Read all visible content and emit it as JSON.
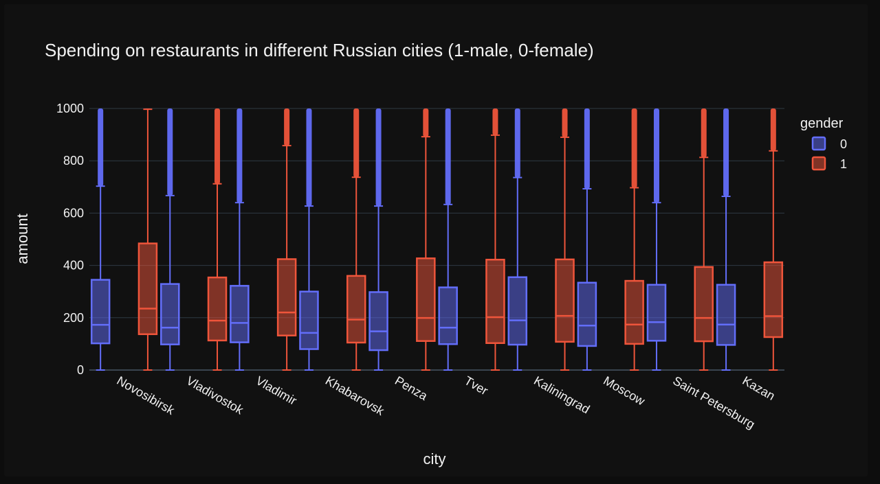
{
  "chart_data": {
    "type": "box",
    "title": "Spending on restaurants in different Russian cities (1-male, 0-female)",
    "xlabel": "city",
    "ylabel": "amount",
    "ylim": [
      0,
      1000
    ],
    "yticks": [
      0,
      200,
      400,
      600,
      800,
      1000
    ],
    "legend_title": "gender",
    "legend_position": "top-right",
    "grid": true,
    "categories": [
      "Novosibirsk",
      "Vladivostok",
      "Vladimir",
      "Khabarovsk",
      "Penza",
      "Tver",
      "Kaliningrad",
      "Moscow",
      "Saint Petersburg",
      "Kazan"
    ],
    "series": [
      {
        "name": "0",
        "color": "#636efa",
        "boxes": [
          {
            "min": 0,
            "q1": 102,
            "median": 173,
            "q3": 345,
            "upper_fence": 703,
            "outliers_to": 1000
          },
          {
            "min": 0,
            "q1": 98,
            "median": 162,
            "q3": 329,
            "upper_fence": 667,
            "outliers_to": 1000
          },
          {
            "min": 0,
            "q1": 106,
            "median": 180,
            "q3": 322,
            "upper_fence": 640,
            "outliers_to": 1000
          },
          {
            "min": 0,
            "q1": 80,
            "median": 142,
            "q3": 300,
            "upper_fence": 627,
            "outliers_to": 1000
          },
          {
            "min": 0,
            "q1": 76,
            "median": 148,
            "q3": 298,
            "upper_fence": 627,
            "outliers_to": 1000
          },
          {
            "min": 0,
            "q1": 99,
            "median": 162,
            "q3": 316,
            "upper_fence": 633,
            "outliers_to": 1000
          },
          {
            "min": 0,
            "q1": 97,
            "median": 190,
            "q3": 355,
            "upper_fence": 736,
            "outliers_to": 1000
          },
          {
            "min": 0,
            "q1": 92,
            "median": 170,
            "q3": 334,
            "upper_fence": 693,
            "outliers_to": 1000
          },
          {
            "min": 0,
            "q1": 112,
            "median": 183,
            "q3": 326,
            "upper_fence": 640,
            "outliers_to": 1000
          },
          {
            "min": 0,
            "q1": 96,
            "median": 174,
            "q3": 326,
            "upper_fence": 664,
            "outliers_to": 1000
          }
        ]
      },
      {
        "name": "1",
        "color": "#ef553b",
        "boxes": [
          {
            "min": 0,
            "q1": 137,
            "median": 235,
            "q3": 484,
            "upper_fence": 997,
            "outliers_to": 1000
          },
          {
            "min": 0,
            "q1": 113,
            "median": 189,
            "q3": 354,
            "upper_fence": 712,
            "outliers_to": 1000
          },
          {
            "min": 0,
            "q1": 132,
            "median": 220,
            "q3": 424,
            "upper_fence": 858,
            "outliers_to": 1000
          },
          {
            "min": 0,
            "q1": 105,
            "median": 193,
            "q3": 360,
            "upper_fence": 737,
            "outliers_to": 1000
          },
          {
            "min": 0,
            "q1": 111,
            "median": 199,
            "q3": 427,
            "upper_fence": 892,
            "outliers_to": 1000
          },
          {
            "min": 0,
            "q1": 103,
            "median": 202,
            "q3": 422,
            "upper_fence": 898,
            "outliers_to": 1000
          },
          {
            "min": 0,
            "q1": 108,
            "median": 207,
            "q3": 423,
            "upper_fence": 890,
            "outliers_to": 1000
          },
          {
            "min": 0,
            "q1": 100,
            "median": 174,
            "q3": 341,
            "upper_fence": 697,
            "outliers_to": 1000
          },
          {
            "min": 0,
            "q1": 110,
            "median": 199,
            "q3": 394,
            "upper_fence": 813,
            "outliers_to": 1000
          },
          {
            "min": 0,
            "q1": 126,
            "median": 206,
            "q3": 412,
            "upper_fence": 838,
            "outliers_to": 1000
          }
        ]
      }
    ]
  }
}
